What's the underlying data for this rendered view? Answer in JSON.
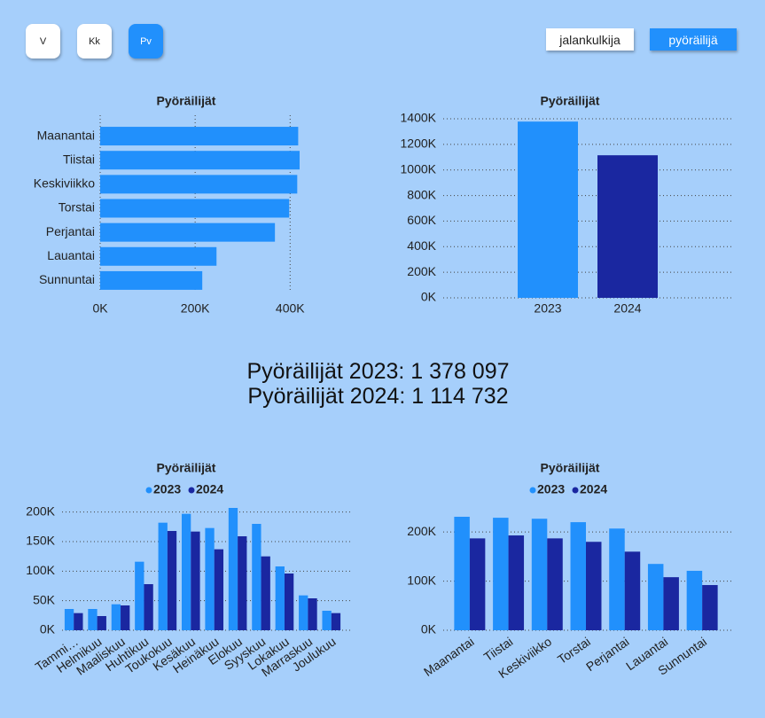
{
  "period_buttons": [
    {
      "label": "V",
      "active": false
    },
    {
      "label": "Kk",
      "active": false
    },
    {
      "label": "Pv",
      "active": true
    }
  ],
  "mode_buttons": [
    {
      "label": "jalankulkija",
      "active": false
    },
    {
      "label": "pyöräilijä",
      "active": true
    }
  ],
  "active_color": "#2190fc",
  "summary": [
    "Pyöräilijät 2023: 1 378 097",
    "Pyöräilijät 2024: 1 114 732"
  ],
  "chart_data": [
    {
      "type": "hbar",
      "title": "Pyöräilijät",
      "categories": [
        "Maanantai",
        "Tiistai",
        "Keskiviikko",
        "Torstai",
        "Perjantai",
        "Lauantai",
        "Sunnuntai"
      ],
      "values": [
        417000,
        420000,
        415000,
        398000,
        368000,
        245000,
        215000
      ],
      "color": "#2190fc",
      "xlim": [
        0,
        420000
      ],
      "xticks": [
        {
          "value": 0,
          "label": "0K"
        },
        {
          "value": 200000,
          "label": "200K"
        },
        {
          "value": 400000,
          "label": "400K"
        }
      ],
      "grid": true
    },
    {
      "type": "bar",
      "title": "Pyöräilijät",
      "categories": [
        "2023",
        "2024"
      ],
      "values": [
        1378097,
        1114732
      ],
      "colors": [
        "#2190fc",
        "#1a27a0"
      ],
      "ylim": [
        0,
        1400000
      ],
      "yticks": [
        {
          "value": 0,
          "label": "0K"
        },
        {
          "value": 200000,
          "label": "200K"
        },
        {
          "value": 400000,
          "label": "400K"
        },
        {
          "value": 600000,
          "label": "600K"
        },
        {
          "value": 800000,
          "label": "800K"
        },
        {
          "value": 1000000,
          "label": "1000K"
        },
        {
          "value": 1200000,
          "label": "1200K"
        },
        {
          "value": 1400000,
          "label": "1400K"
        }
      ],
      "grid": true
    },
    {
      "type": "grouped_bar",
      "title": "Pyöräilijät",
      "categories": [
        "Tammi…",
        "Helmikuu",
        "Maaliskuu",
        "Huhtikuu",
        "Toukokuu",
        "Kesäkuu",
        "Heinäkuu",
        "Elokuu",
        "Syyskuu",
        "Lokakuu",
        "Marraskuu",
        "Joulukuu"
      ],
      "series": [
        {
          "name": "2023",
          "color": "#2190fc",
          "values": [
            36000,
            36000,
            44000,
            116000,
            182000,
            197000,
            173000,
            207000,
            180000,
            108000,
            59000,
            33000
          ]
        },
        {
          "name": "2024",
          "color": "#1a27a0",
          "values": [
            29000,
            24000,
            42000,
            78000,
            168000,
            167000,
            137000,
            159000,
            125000,
            96000,
            54000,
            29000
          ]
        }
      ],
      "ylim": [
        0,
        210000
      ],
      "yticks": [
        {
          "value": 0,
          "label": "0K"
        },
        {
          "value": 50000,
          "label": "50K"
        },
        {
          "value": 100000,
          "label": "100K"
        },
        {
          "value": 150000,
          "label": "150K"
        },
        {
          "value": 200000,
          "label": "200K"
        }
      ],
      "grid": true
    },
    {
      "type": "grouped_bar",
      "title": "Pyöräilijät",
      "categories": [
        "Maanantai",
        "Tiistai",
        "Keskiviikko",
        "Torstai",
        "Perjantai",
        "Lauantai",
        "Sunnuntai"
      ],
      "series": [
        {
          "name": "2023",
          "color": "#2190fc",
          "values": [
            231000,
            229000,
            227000,
            220000,
            207000,
            135000,
            121000
          ]
        },
        {
          "name": "2024",
          "color": "#1a27a0",
          "values": [
            187000,
            193000,
            187000,
            180000,
            160000,
            108000,
            92000
          ]
        }
      ],
      "ylim": [
        0,
        240000
      ],
      "yticks": [
        {
          "value": 0,
          "label": "0K"
        },
        {
          "value": 100000,
          "label": "100K"
        },
        {
          "value": 200000,
          "label": "200K"
        }
      ],
      "grid": true
    }
  ]
}
